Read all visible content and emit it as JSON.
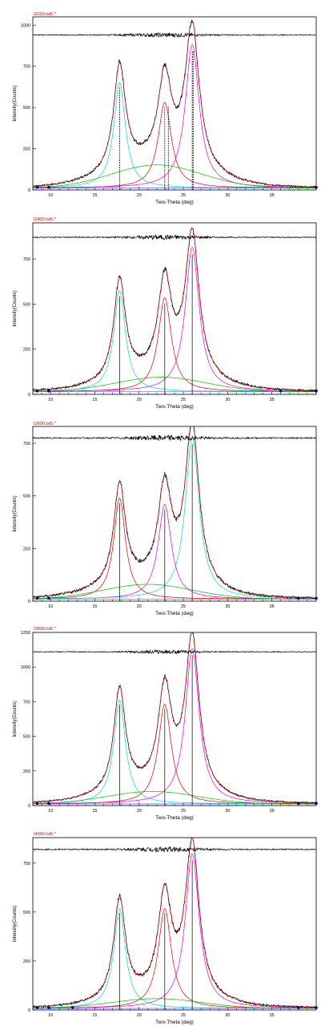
{
  "colors": {
    "observed": "#000000",
    "fit": "#e00000",
    "peak1": "#00d8d8",
    "peak2": "#e00000",
    "peak3": "#e000e0",
    "amorphous": "#00c000",
    "background": "#4040ff",
    "marker": "#000080",
    "file_label": "#e00000"
  },
  "chart_data": [
    {
      "type": "line",
      "file_label": "I3200.txt5 *",
      "xlabel": "Two-Theta (deg)",
      "ylabel": "Intensity(Counts)",
      "xlim": [
        8,
        40
      ],
      "ylim": [
        0,
        1050
      ],
      "x_ticks": [
        10,
        15,
        20,
        25,
        30,
        35
      ],
      "y_ticks": [
        0,
        250,
        500,
        750,
        1000
      ],
      "grid": false,
      "difference_offset": 940,
      "background_level": 12,
      "peaks": [
        {
          "name": "peak1",
          "center": 17.8,
          "height": 640,
          "fwhm": 1.6
        },
        {
          "name": "peak2",
          "center": 22.9,
          "height": 520,
          "fwhm": 1.8
        },
        {
          "name": "peak3",
          "center": 26.0,
          "height": 870,
          "fwhm": 1.9
        },
        {
          "name": "amorphous",
          "center": 22.0,
          "height": 140,
          "fwhm": 12.0
        }
      ],
      "stick_markers": [
        17.8,
        22.9,
        23.3,
        26.0,
        26.1
      ],
      "endpoints": [
        8.5,
        9.8,
        40.0
      ]
    },
    {
      "type": "line",
      "file_label": "I3400.txt5 *",
      "xlabel": "Two-Theta (deg)",
      "ylabel": "Intensity(Counts)",
      "xlim": [
        8,
        40
      ],
      "ylim": [
        0,
        950
      ],
      "x_ticks": [
        10,
        15,
        20,
        25,
        30,
        35
      ],
      "y_ticks": [
        0,
        250,
        500,
        750
      ],
      "grid": false,
      "difference_offset": 870,
      "background_level": 15,
      "peaks": [
        {
          "name": "peak1",
          "center": 17.8,
          "height": 560,
          "fwhm": 1.6
        },
        {
          "name": "peak2",
          "center": 22.9,
          "height": 520,
          "fwhm": 1.8
        },
        {
          "name": "peak3",
          "center": 26.0,
          "height": 800,
          "fwhm": 1.9
        },
        {
          "name": "amorphous",
          "center": 22.5,
          "height": 80,
          "fwhm": 12.0
        }
      ],
      "stick_markers": [
        17.8,
        22.9,
        26.0
      ],
      "endpoints": [
        8.5,
        9.8,
        36.0,
        40.0
      ]
    },
    {
      "type": "line",
      "file_label": "I3600.txt5 *",
      "xlabel": "Two-Theta (deg)",
      "ylabel": "Intensity(Counts)",
      "xlim": [
        8,
        40
      ],
      "ylim": [
        0,
        830
      ],
      "x_ticks": [
        10,
        15,
        20,
        25,
        30,
        35
      ],
      "y_ticks": [
        0,
        250,
        500,
        750
      ],
      "grid": false,
      "difference_offset": 775,
      "background_level": 10,
      "peaks": [
        {
          "name": "peak2",
          "center": 17.8,
          "height": 480,
          "fwhm": 1.6
        },
        {
          "name": "peak3",
          "center": 22.9,
          "height": 450,
          "fwhm": 1.8
        },
        {
          "name": "peak1",
          "center": 26.0,
          "height": 770,
          "fwhm": 1.9
        },
        {
          "name": "amorphous",
          "center": 21.0,
          "height": 70,
          "fwhm": 12.0
        }
      ],
      "stick_markers": [
        17.8,
        22.9,
        26.0
      ],
      "endpoints": [
        8.5,
        9.8,
        38.0,
        40.0
      ]
    },
    {
      "type": "line",
      "file_label": "I3800.txt5 *",
      "xlabel": "Two-Theta (deg)",
      "ylabel": "Intensity(Counts)",
      "xlim": [
        8,
        40
      ],
      "ylim": [
        0,
        1250
      ],
      "x_ticks": [
        10,
        15,
        20,
        25,
        30,
        35
      ],
      "y_ticks": [
        0,
        250,
        500,
        750,
        1000,
        1250
      ],
      "grid": false,
      "difference_offset": 1110,
      "background_level": 12,
      "peaks": [
        {
          "name": "peak1",
          "center": 17.8,
          "height": 750,
          "fwhm": 1.6
        },
        {
          "name": "peak2",
          "center": 22.9,
          "height": 720,
          "fwhm": 1.8
        },
        {
          "name": "peak3",
          "center": 26.0,
          "height": 1120,
          "fwhm": 1.9
        },
        {
          "name": "amorphous",
          "center": 21.5,
          "height": 90,
          "fwhm": 12.0
        }
      ],
      "stick_markers": [
        17.8,
        22.9,
        26.0
      ],
      "endpoints": [
        8.5,
        9.8,
        38.0,
        40.0
      ]
    },
    {
      "type": "line",
      "file_label": "I4000.txt5 *",
      "xlabel": "Two-Theta (deg)",
      "ylabel": "Intensity(Counts)",
      "xlim": [
        8,
        40
      ],
      "ylim": [
        0,
        880
      ],
      "x_ticks": [
        10,
        15,
        20,
        25,
        30,
        35
      ],
      "y_ticks": [
        0,
        250,
        500,
        750
      ],
      "grid": false,
      "difference_offset": 820,
      "background_level": 8,
      "peaks": [
        {
          "name": "peak1",
          "center": 17.8,
          "height": 510,
          "fwhm": 1.6
        },
        {
          "name": "peak2",
          "center": 22.9,
          "height": 510,
          "fwhm": 1.8
        },
        {
          "name": "peak3",
          "center": 26.0,
          "height": 790,
          "fwhm": 1.9
        },
        {
          "name": "amorphous",
          "center": 22.0,
          "height": 50,
          "fwhm": 12.0
        }
      ],
      "stick_markers": [
        17.8,
        22.9,
        26.0
      ],
      "endpoints": [
        8.5,
        9.8,
        12.5,
        38.0,
        40.0
      ]
    }
  ]
}
